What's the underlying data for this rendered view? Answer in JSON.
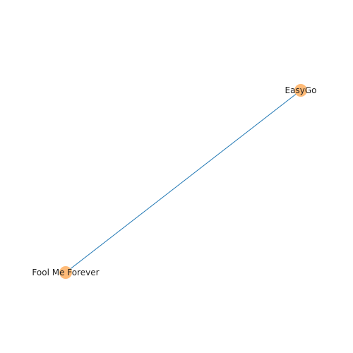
{
  "graph": {
    "nodes": [
      {
        "id": "easygo",
        "label": "EasyGo"
      },
      {
        "id": "fool-me-forever",
        "label": "Fool Me Forever"
      }
    ],
    "edges": [
      {
        "source": "easygo",
        "target": "fool-me-forever"
      }
    ],
    "colors": {
      "node": "#ffbb78",
      "edge": "#1f77b4",
      "label": "#222222"
    }
  }
}
